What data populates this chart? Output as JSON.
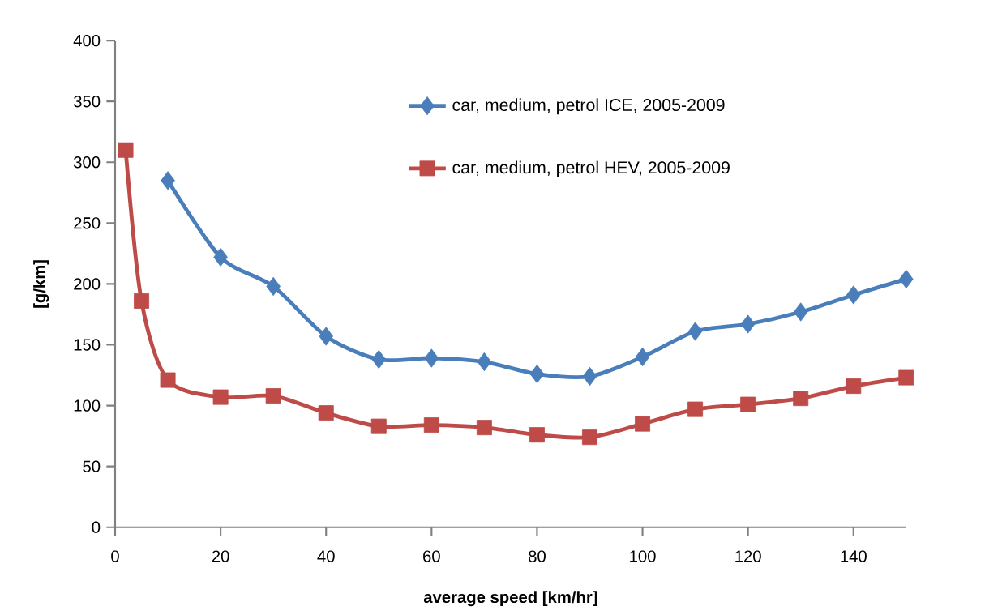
{
  "chart_data": {
    "type": "line",
    "xlabel": "average speed [km/hr]",
    "ylabel": "[g/km]",
    "xlim": [
      0,
      150
    ],
    "ylim": [
      0,
      400
    ],
    "xticks": [
      0,
      20,
      40,
      60,
      80,
      100,
      120,
      140
    ],
    "yticks": [
      0,
      50,
      100,
      150,
      200,
      250,
      300,
      350,
      400
    ],
    "grid": false,
    "legend": "top right",
    "series": [
      {
        "name": "car, medium, petrol ICE, 2005-2009",
        "color": "#4a7ebb",
        "marker": "diamond",
        "x": [
          10,
          20,
          30,
          40,
          50,
          60,
          70,
          80,
          90,
          100,
          110,
          120,
          130,
          140,
          150
        ],
        "values": [
          285,
          222,
          198,
          157,
          138,
          139,
          136,
          126,
          124,
          140,
          161,
          167,
          177,
          191,
          204
        ]
      },
      {
        "name": "car, medium, petrol HEV, 2005-2009",
        "color": "#be4b48",
        "marker": "square",
        "x": [
          2,
          5,
          10,
          20,
          30,
          40,
          50,
          60,
          70,
          80,
          90,
          100,
          110,
          120,
          130,
          140,
          150
        ],
        "values": [
          310,
          186,
          121,
          107,
          108,
          94,
          83,
          84,
          82,
          76,
          74,
          85,
          97,
          101,
          106,
          116,
          123
        ]
      }
    ]
  }
}
